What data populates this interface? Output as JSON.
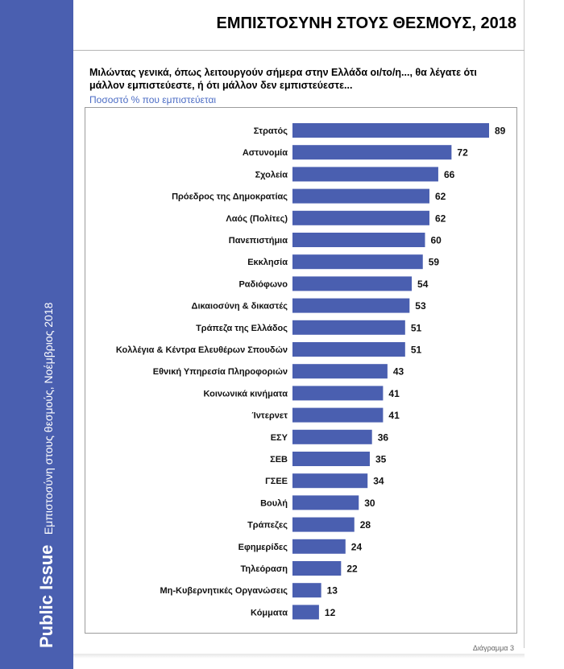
{
  "header": {
    "title": "ΕΜΠΙΣΤΟΣΥΝΗ ΣΤΟΥΣ ΘΕΣΜΟΥΣ, 2018",
    "question": "Μιλώντας γενικά, όπως λειτουργούν σήμερα στην Ελλάδα οι/το/η..., θα λέγατε ότι μάλλον εμπιστεύεστε, ή ότι μάλλον δεν εμπιστεύεστε...",
    "metric": "Ποσοστό % που εμπιστεύεται"
  },
  "sidebar": {
    "brand": "Public Issue",
    "subtitle": "Εμπιστοσύνη στους θεσμούς, Νοέμβριος 2018"
  },
  "footer": {
    "caption": "Διάγραμμα 3"
  },
  "colors": {
    "bar": "#4a5fb0",
    "sidebar": "#4a5fb0",
    "metric_text": "#4a6bc4"
  },
  "chart_data": {
    "type": "bar",
    "orientation": "horizontal",
    "title": "ΕΜΠΙΣΤΟΣΥΝΗ ΣΤΟΥΣ ΘΕΣΜΟΥΣ, 2018",
    "xlabel": "",
    "ylabel": "",
    "xlim": [
      0,
      100
    ],
    "grid": false,
    "categories": [
      "Στρατός",
      "Αστυνομία",
      "Σχολεία",
      "Πρόεδρος της Δημοκρατίας",
      "Λαός (Πολίτες)",
      "Πανεπιστήμια",
      "Εκκλησία",
      "Ραδιόφωνο",
      "Δικαιοσύνη & δικαστές",
      "Τράπεζα της Ελλάδος",
      "Κολλέγια & Κέντρα Ελευθέρων Σπουδών",
      "Εθνική Υπηρεσία Πληροφοριών",
      "Κοινωνικά κινήματα",
      "Ίντερνετ",
      "ΕΣΥ",
      "ΣΕΒ",
      "ΓΣΕΕ",
      "Βουλή",
      "Τράπεζες",
      "Εφημερίδες",
      "Τηλεόραση",
      "Μη-Κυβερνητικές Οργανώσεις",
      "Κόμματα"
    ],
    "values": [
      89,
      72,
      66,
      62,
      62,
      60,
      59,
      54,
      53,
      51,
      51,
      43,
      41,
      41,
      36,
      35,
      34,
      30,
      28,
      24,
      22,
      13,
      12
    ]
  }
}
